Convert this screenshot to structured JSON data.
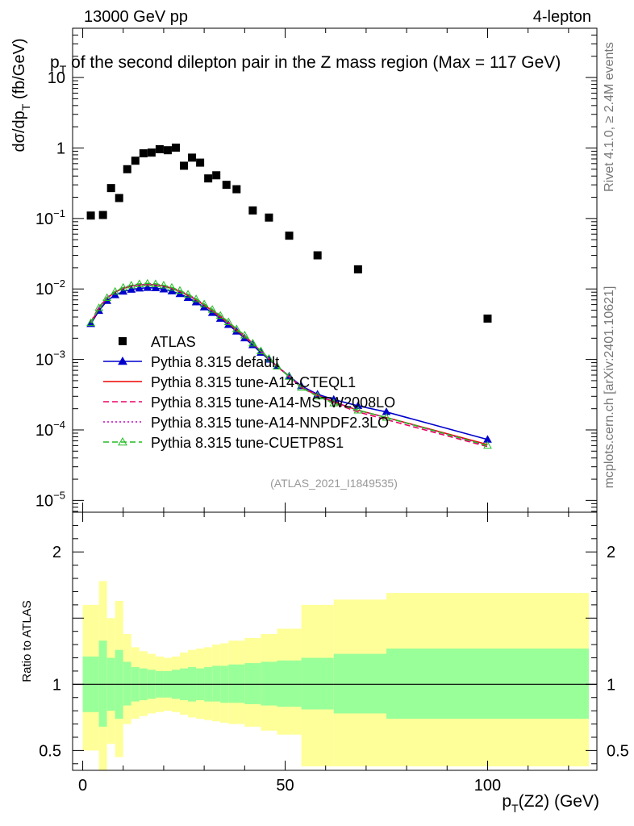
{
  "header": {
    "energy_label": "13000 GeV pp",
    "channel_label": "4-lepton"
  },
  "side_labels": {
    "rivet": "Rivet 4.1.0, ≥ 2.4M events",
    "site": "mcplots.cern.ch [arXiv:2401.10621]"
  },
  "chart_data": {
    "type": "scatter",
    "title": "p_T of the second dilepton pair in the Z mass region (Max = 117 GeV)",
    "title_main": "p",
    "title_sub": "T",
    "title_rest": " of the second dilepton pair in the Z mass region (Max = 117 GeV)",
    "watermark": "(ATLAS_2021_I1849535)",
    "xlabel": "p_T(Z2) (GeV)",
    "xlabel_main": "p",
    "xlabel_sub": "T",
    "xlabel_rest": "(Z2) (GeV)",
    "ylabel": "dσ/dp_T (fb/GeV)",
    "ylabel_main": "dσ/dp",
    "ylabel_sub": "T",
    "ylabel_rest": " (fb/GeV)",
    "xlim": [
      -2.5,
      127
    ],
    "ylim": [
      6.8e-06,
      50
    ],
    "yscale": "log",
    "x_ticks": [
      0,
      50,
      100
    ],
    "x_tick_labels": [
      "0",
      "50",
      "100"
    ],
    "y_ticks": [
      1e-05,
      0.0001,
      0.001,
      0.01,
      0.1,
      1,
      10
    ],
    "y_tick_labels": [
      {
        "base": "10",
        "exp": "−5"
      },
      {
        "base": "10",
        "exp": "−4"
      },
      {
        "base": "10",
        "exp": "−3"
      },
      {
        "base": "10",
        "exp": "−2"
      },
      {
        "base": "10",
        "exp": "−1"
      },
      {
        "base": "1",
        "exp": ""
      },
      {
        "base": "10",
        "exp": ""
      }
    ],
    "data": {
      "name": "ATLAS",
      "x": [
        2,
        5,
        7,
        9,
        11,
        13,
        15,
        17,
        19,
        21,
        23,
        25,
        27,
        29,
        31,
        33,
        35.5,
        38,
        42,
        46,
        51,
        58,
        68,
        100
      ],
      "y": [
        0.11,
        0.112,
        0.27,
        0.195,
        0.5,
        0.66,
        0.84,
        0.86,
        0.96,
        0.93,
        1.01,
        0.56,
        0.73,
        0.62,
        0.37,
        0.41,
        0.3,
        0.26,
        0.13,
        0.103,
        0.057,
        0.03,
        0.019,
        0.0038
      ],
      "color": "#000000"
    },
    "series": [
      {
        "name": "Pythia 8.315 default",
        "color": "#0000cc",
        "dash": "solid",
        "marker": "triangle-filled",
        "x": [
          2,
          4,
          6,
          8,
          10,
          12,
          14,
          16,
          18,
          20,
          22,
          24,
          26,
          28,
          30,
          32,
          34,
          36,
          38,
          40,
          42,
          44,
          46,
          48,
          51,
          54,
          58,
          62,
          68,
          75,
          100
        ],
        "y": [
          0.0032,
          0.0049,
          0.0068,
          0.0082,
          0.0092,
          0.0098,
          0.0102,
          0.0104,
          0.0103,
          0.0099,
          0.0093,
          0.0085,
          0.0075,
          0.0065,
          0.0055,
          0.0046,
          0.0038,
          0.0031,
          0.0025,
          0.002,
          0.0016,
          0.00125,
          0.001,
          0.0008,
          0.00058,
          0.00042,
          0.00032,
          0.00027,
          0.00022,
          0.00018,
          7.3e-05
        ]
      },
      {
        "name": "Pythia 8.315 tune-A14-CTEQL1",
        "color": "#ee0000",
        "dash": "solid",
        "marker": "none",
        "x": [
          2,
          4,
          6,
          8,
          10,
          12,
          14,
          16,
          18,
          20,
          22,
          24,
          26,
          28,
          30,
          32,
          34,
          36,
          38,
          40,
          42,
          44,
          46,
          48,
          51,
          54,
          58,
          62,
          68,
          75,
          100
        ],
        "y": [
          0.0033,
          0.0053,
          0.0074,
          0.009,
          0.0102,
          0.011,
          0.0114,
          0.0116,
          0.0114,
          0.011,
          0.0102,
          0.0092,
          0.0081,
          0.007,
          0.0059,
          0.0049,
          0.004,
          0.0033,
          0.0026,
          0.0021,
          0.0017,
          0.0013,
          0.00102,
          0.0008,
          0.00057,
          0.0004,
          0.00031,
          0.00025,
          0.00019,
          0.00015,
          6.2e-05
        ]
      },
      {
        "name": "Pythia 8.315 tune-A14-MSTW2008LO",
        "color": "#ee0066",
        "dash": "dashed",
        "marker": "none",
        "x": [
          2,
          4,
          6,
          8,
          10,
          12,
          14,
          16,
          18,
          20,
          22,
          24,
          26,
          28,
          30,
          32,
          34,
          36,
          38,
          40,
          42,
          44,
          46,
          48,
          51,
          54,
          58,
          62,
          68,
          75,
          100
        ],
        "y": [
          0.0034,
          0.0055,
          0.0076,
          0.0092,
          0.0104,
          0.0112,
          0.0117,
          0.0119,
          0.0117,
          0.0112,
          0.0104,
          0.0094,
          0.0083,
          0.0072,
          0.0061,
          0.0051,
          0.0042,
          0.0034,
          0.0027,
          0.0022,
          0.0017,
          0.00132,
          0.00103,
          0.0008,
          0.00057,
          0.0004,
          0.0003,
          0.00024,
          0.00018,
          0.00014,
          5.8e-05
        ]
      },
      {
        "name": "Pythia 8.315 tune-A14-NNPDF2.3LO",
        "color": "#cc00cc",
        "dash": "dotted",
        "marker": "none",
        "x": [
          2,
          4,
          6,
          8,
          10,
          12,
          14,
          16,
          18,
          20,
          22,
          24,
          26,
          28,
          30,
          32,
          34,
          36,
          38,
          40,
          42,
          44,
          46,
          48,
          51,
          54,
          58,
          62,
          68,
          75,
          100
        ],
        "y": [
          0.0033,
          0.0054,
          0.0075,
          0.0091,
          0.0103,
          0.0111,
          0.0115,
          0.0117,
          0.0115,
          0.0111,
          0.0103,
          0.0093,
          0.0082,
          0.0071,
          0.006,
          0.005,
          0.0041,
          0.0033,
          0.0027,
          0.0021,
          0.0017,
          0.0013,
          0.00103,
          0.0008,
          0.00058,
          0.00041,
          0.00031,
          0.00025,
          0.00019,
          0.00015,
          6e-05
        ]
      },
      {
        "name": "Pythia 8.315 tune-CUETP8S1",
        "color": "#22bb22",
        "dash": "dashed",
        "marker": "triangle-open",
        "x": [
          2,
          4,
          6,
          8,
          10,
          12,
          14,
          16,
          18,
          20,
          22,
          24,
          26,
          28,
          30,
          32,
          34,
          36,
          38,
          40,
          42,
          44,
          46,
          48,
          51,
          54,
          58,
          62,
          68,
          75,
          100
        ],
        "y": [
          0.0033,
          0.0054,
          0.0075,
          0.0092,
          0.0105,
          0.0113,
          0.0118,
          0.012,
          0.0118,
          0.0113,
          0.0105,
          0.0095,
          0.0084,
          0.0072,
          0.0061,
          0.0051,
          0.0042,
          0.0034,
          0.0027,
          0.0022,
          0.0017,
          0.00132,
          0.00103,
          0.0008,
          0.00057,
          0.0004,
          0.0003,
          0.00024,
          0.00019,
          0.00015,
          6e-05
        ]
      }
    ],
    "ratio": {
      "ylabel": "Ratio to ATLAS",
      "ylim": [
        0.35,
        2.3
      ],
      "y_ticks": [
        0.5,
        1,
        2
      ],
      "y_tick_labels": [
        "0.5",
        "1",
        "2"
      ],
      "reference": 1,
      "bins": [
        {
          "lo": 0,
          "hi": 4,
          "inner": [
            0.79,
            1.21
          ],
          "outer": [
            0.5,
            1.6
          ]
        },
        {
          "lo": 4,
          "hi": 6,
          "inner": [
            0.68,
            1.33
          ],
          "outer": [
            0.3,
            1.78
          ]
        },
        {
          "lo": 6,
          "hi": 8,
          "inner": [
            0.8,
            1.2
          ],
          "outer": [
            0.55,
            1.5
          ]
        },
        {
          "lo": 8,
          "hi": 10,
          "inner": [
            0.74,
            1.26
          ],
          "outer": [
            0.45,
            1.63
          ]
        },
        {
          "lo": 10,
          "hi": 12,
          "inner": [
            0.84,
            1.17
          ],
          "outer": [
            0.7,
            1.38
          ]
        },
        {
          "lo": 12,
          "hi": 14,
          "inner": [
            0.87,
            1.13
          ],
          "outer": [
            0.74,
            1.28
          ]
        },
        {
          "lo": 14,
          "hi": 16,
          "inner": [
            0.88,
            1.12
          ],
          "outer": [
            0.76,
            1.25
          ]
        },
        {
          "lo": 16,
          "hi": 18,
          "inner": [
            0.89,
            1.11
          ],
          "outer": [
            0.78,
            1.23
          ]
        },
        {
          "lo": 18,
          "hi": 20,
          "inner": [
            0.9,
            1.1
          ],
          "outer": [
            0.79,
            1.21
          ]
        },
        {
          "lo": 20,
          "hi": 22,
          "inner": [
            0.9,
            1.1
          ],
          "outer": [
            0.8,
            1.2
          ]
        },
        {
          "lo": 22,
          "hi": 24,
          "inner": [
            0.89,
            1.11
          ],
          "outer": [
            0.79,
            1.21
          ]
        },
        {
          "lo": 24,
          "hi": 26,
          "inner": [
            0.88,
            1.12
          ],
          "outer": [
            0.77,
            1.24
          ]
        },
        {
          "lo": 26,
          "hi": 28,
          "inner": [
            0.87,
            1.13
          ],
          "outer": [
            0.75,
            1.26
          ]
        },
        {
          "lo": 28,
          "hi": 30,
          "inner": [
            0.88,
            1.12
          ],
          "outer": [
            0.74,
            1.27
          ]
        },
        {
          "lo": 30,
          "hi": 32,
          "inner": [
            0.87,
            1.13
          ],
          "outer": [
            0.73,
            1.28
          ]
        },
        {
          "lo": 32,
          "hi": 34,
          "inner": [
            0.87,
            1.14
          ],
          "outer": [
            0.72,
            1.3
          ]
        },
        {
          "lo": 34,
          "hi": 36,
          "inner": [
            0.86,
            1.14
          ],
          "outer": [
            0.71,
            1.31
          ]
        },
        {
          "lo": 36,
          "hi": 40,
          "inner": [
            0.86,
            1.15
          ],
          "outer": [
            0.7,
            1.33
          ]
        },
        {
          "lo": 40,
          "hi": 44,
          "inner": [
            0.85,
            1.16
          ],
          "outer": [
            0.68,
            1.35
          ]
        },
        {
          "lo": 44,
          "hi": 48,
          "inner": [
            0.84,
            1.17
          ],
          "outer": [
            0.65,
            1.38
          ]
        },
        {
          "lo": 48,
          "hi": 54,
          "inner": [
            0.83,
            1.18
          ],
          "outer": [
            0.62,
            1.42
          ]
        },
        {
          "lo": 54,
          "hi": 62,
          "inner": [
            0.81,
            1.2
          ],
          "outer": [
            0.38,
            1.6
          ]
        },
        {
          "lo": 62,
          "hi": 75,
          "inner": [
            0.78,
            1.23
          ],
          "outer": [
            0.38,
            1.64
          ]
        },
        {
          "lo": 75,
          "hi": 125,
          "inner": [
            0.74,
            1.27
          ],
          "outer": [
            0.38,
            1.69
          ]
        }
      ]
    }
  }
}
